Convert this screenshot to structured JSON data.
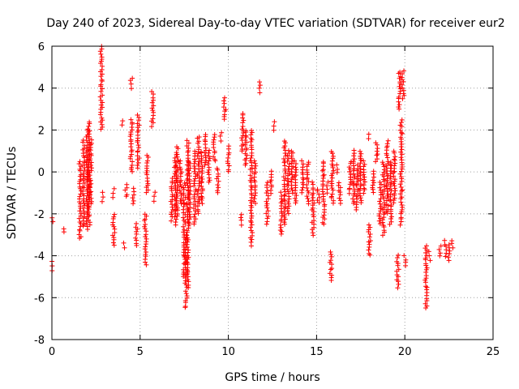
{
  "chart_data": {
    "type": "scatter",
    "title": "Day 240 of 2023, Sidereal Day-to-day VTEC variation (SDTVAR) for receiver eur2",
    "xlabel": "GPS time / hours",
    "ylabel": "SDTVAR / TECUs",
    "xlim": [
      0,
      25
    ],
    "ylim": [
      -8,
      6
    ],
    "xticks": [
      "0",
      "5",
      "10",
      "15",
      "20",
      "25"
    ],
    "yticks": [
      "-8",
      "-6",
      "-4",
      "-2",
      "0",
      "2",
      "4",
      "6"
    ],
    "grid": true,
    "marker": "+",
    "color": "#ff0000",
    "clusters": [
      {
        "x": 0.0,
        "y0": -4.7,
        "y1": -4.3
      },
      {
        "x": 0.05,
        "y0": -2.4,
        "y1": -2.2
      },
      {
        "x": 0.7,
        "y0": -2.9,
        "y1": -2.7
      },
      {
        "x": 1.6,
        "y0": -3.2,
        "y1": 0.5
      },
      {
        "x": 1.8,
        "y0": -2.6,
        "y1": 1.5
      },
      {
        "x": 2.0,
        "y0": -2.7,
        "y1": 2.0
      },
      {
        "x": 2.1,
        "y0": -2.5,
        "y1": 2.4
      },
      {
        "x": 2.2,
        "y0": -1.5,
        "y1": 1.5
      },
      {
        "x": 2.8,
        "y0": 2.0,
        "y1": 6.0
      },
      {
        "x": 2.9,
        "y0": -1.4,
        "y1": -1.0
      },
      {
        "x": 3.5,
        "y0": -3.5,
        "y1": -2.0
      },
      {
        "x": 3.5,
        "y0": -1.2,
        "y1": -0.8
      },
      {
        "x": 4.0,
        "y0": 2.2,
        "y1": 2.4
      },
      {
        "x": 4.1,
        "y0": -3.6,
        "y1": -3.4
      },
      {
        "x": 4.2,
        "y0": -1.2,
        "y1": -0.6
      },
      {
        "x": 4.5,
        "y0": 4.0,
        "y1": 4.5
      },
      {
        "x": 4.5,
        "y0": 0.0,
        "y1": 2.5
      },
      {
        "x": 4.6,
        "y0": -1.5,
        "y1": -0.8
      },
      {
        "x": 4.8,
        "y0": -3.5,
        "y1": -2.5
      },
      {
        "x": 4.9,
        "y0": 0.2,
        "y1": 2.7
      },
      {
        "x": 5.3,
        "y0": -4.4,
        "y1": -2.0
      },
      {
        "x": 5.4,
        "y0": -1.0,
        "y1": 0.8
      },
      {
        "x": 5.7,
        "y0": 2.2,
        "y1": 3.8
      },
      {
        "x": 5.8,
        "y0": -1.4,
        "y1": -1.0
      },
      {
        "x": 6.8,
        "y0": -2.3,
        "y1": -0.3
      },
      {
        "x": 7.0,
        "y0": -2.5,
        "y1": 0.8
      },
      {
        "x": 7.1,
        "y0": -2.1,
        "y1": 1.2
      },
      {
        "x": 7.3,
        "y0": -1.5,
        "y1": 0.5
      },
      {
        "x": 7.5,
        "y0": -5.0,
        "y1": -0.5
      },
      {
        "x": 7.6,
        "y0": -6.5,
        "y1": -3.0
      },
      {
        "x": 7.7,
        "y0": -5.5,
        "y1": 1.5
      },
      {
        "x": 7.8,
        "y0": -2.5,
        "y1": 0.5
      },
      {
        "x": 8.1,
        "y0": -2.5,
        "y1": 1.0
      },
      {
        "x": 8.3,
        "y0": -2.0,
        "y1": 1.7
      },
      {
        "x": 8.5,
        "y0": -1.5,
        "y1": 1.0
      },
      {
        "x": 8.7,
        "y0": 0.3,
        "y1": 1.8
      },
      {
        "x": 8.9,
        "y0": -0.5,
        "y1": 1.0
      },
      {
        "x": 9.2,
        "y0": 0.5,
        "y1": 1.8
      },
      {
        "x": 9.4,
        "y0": -1.0,
        "y1": 0.2
      },
      {
        "x": 9.6,
        "y0": 1.5,
        "y1": 1.9
      },
      {
        "x": 9.8,
        "y0": 2.5,
        "y1": 3.5
      },
      {
        "x": 10.0,
        "y0": 0.0,
        "y1": 1.2
      },
      {
        "x": 10.7,
        "y0": -2.5,
        "y1": -2.0
      },
      {
        "x": 10.8,
        "y0": 1.0,
        "y1": 2.8
      },
      {
        "x": 11.0,
        "y0": 0.3,
        "y1": 2.0
      },
      {
        "x": 11.3,
        "y0": -3.5,
        "y1": 2.0
      },
      {
        "x": 11.5,
        "y0": -1.5,
        "y1": 0.5
      },
      {
        "x": 11.8,
        "y0": 3.8,
        "y1": 4.3
      },
      {
        "x": 12.2,
        "y0": -2.5,
        "y1": -0.5
      },
      {
        "x": 12.4,
        "y0": -1.0,
        "y1": 0.0
      },
      {
        "x": 12.6,
        "y0": 2.0,
        "y1": 2.4
      },
      {
        "x": 13.0,
        "y0": -3.0,
        "y1": -1.0
      },
      {
        "x": 13.2,
        "y0": -2.5,
        "y1": 1.5
      },
      {
        "x": 13.4,
        "y0": -2.0,
        "y1": 1.0
      },
      {
        "x": 13.6,
        "y0": -1.0,
        "y1": 1.0
      },
      {
        "x": 13.8,
        "y0": -1.5,
        "y1": 0.5
      },
      {
        "x": 14.2,
        "y0": -1.0,
        "y1": 0.5
      },
      {
        "x": 14.5,
        "y0": -1.5,
        "y1": 0.5
      },
      {
        "x": 14.8,
        "y0": -3.0,
        "y1": -0.5
      },
      {
        "x": 15.1,
        "y0": -1.5,
        "y1": -0.8
      },
      {
        "x": 15.4,
        "y0": -2.5,
        "y1": 0.5
      },
      {
        "x": 15.6,
        "y0": -1.0,
        "y1": -0.5
      },
      {
        "x": 15.8,
        "y0": -5.2,
        "y1": -3.8
      },
      {
        "x": 15.9,
        "y0": -1.5,
        "y1": 1.0
      },
      {
        "x": 16.2,
        "y0": 0.0,
        "y1": 0.3
      },
      {
        "x": 16.3,
        "y0": -1.5,
        "y1": -0.5
      },
      {
        "x": 16.9,
        "y0": -1.0,
        "y1": 0.5
      },
      {
        "x": 17.1,
        "y0": -1.5,
        "y1": 1.0
      },
      {
        "x": 17.3,
        "y0": -1.8,
        "y1": 0.3
      },
      {
        "x": 17.5,
        "y0": -1.5,
        "y1": 1.0
      },
      {
        "x": 17.7,
        "y0": -1.0,
        "y1": 0.5
      },
      {
        "x": 17.9,
        "y0": 1.6,
        "y1": 1.8
      },
      {
        "x": 18.0,
        "y0": -4.0,
        "y1": -2.5
      },
      {
        "x": 18.2,
        "y0": -1.0,
        "y1": 0.0
      },
      {
        "x": 18.4,
        "y0": 0.5,
        "y1": 1.4
      },
      {
        "x": 18.6,
        "y0": -2.5,
        "y1": -0.5
      },
      {
        "x": 18.8,
        "y0": -3.0,
        "y1": 0.5
      },
      {
        "x": 19.0,
        "y0": -2.0,
        "y1": 1.5
      },
      {
        "x": 19.2,
        "y0": -2.5,
        "y1": 0.5
      },
      {
        "x": 19.4,
        "y0": -1.5,
        "y1": 1.0
      },
      {
        "x": 19.6,
        "y0": -5.5,
        "y1": -4.0
      },
      {
        "x": 19.7,
        "y0": 3.0,
        "y1": 4.8
      },
      {
        "x": 19.8,
        "y0": -2.5,
        "y1": 2.5
      },
      {
        "x": 19.9,
        "y0": 3.5,
        "y1": 4.8
      },
      {
        "x": 20.0,
        "y0": -4.5,
        "y1": -4.0
      },
      {
        "x": 21.2,
        "y0": -6.5,
        "y1": -3.5
      },
      {
        "x": 21.4,
        "y0": -4.2,
        "y1": -3.8
      },
      {
        "x": 22.0,
        "y0": -4.0,
        "y1": -3.5
      },
      {
        "x": 22.3,
        "y0": -4.0,
        "y1": -3.3
      },
      {
        "x": 22.5,
        "y0": -4.2,
        "y1": -3.5
      },
      {
        "x": 22.7,
        "y0": -3.6,
        "y1": -3.3
      }
    ]
  }
}
